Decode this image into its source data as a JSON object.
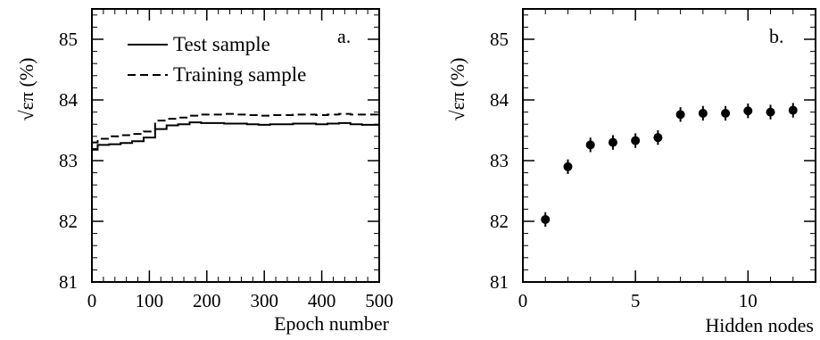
{
  "chart_data": [
    {
      "type": "line",
      "panel_label": "a.",
      "xlabel": "Epoch number",
      "ylabel": "√επ  (%)",
      "xlim": [
        0,
        500
      ],
      "ylim": [
        81,
        85.5
      ],
      "xticks": [
        0,
        100,
        200,
        300,
        400,
        500
      ],
      "yticks": [
        81,
        82,
        83,
        84,
        85
      ],
      "grid": false,
      "legend_position": "top-left",
      "series": [
        {
          "name": "Test sample",
          "style": "solid",
          "step": true,
          "x": [
            0,
            10,
            30,
            50,
            70,
            90,
            110,
            130,
            150,
            170,
            190,
            210,
            230,
            250,
            270,
            290,
            310,
            330,
            350,
            370,
            390,
            410,
            430,
            450,
            470,
            490,
            500
          ],
          "y": [
            83.18,
            83.26,
            83.27,
            83.29,
            83.32,
            83.38,
            83.52,
            83.58,
            83.6,
            83.63,
            83.62,
            83.62,
            83.61,
            83.61,
            83.6,
            83.59,
            83.6,
            83.6,
            83.61,
            83.61,
            83.6,
            83.61,
            83.62,
            83.6,
            83.59,
            83.59,
            83.59
          ]
        },
        {
          "name": "Training sample",
          "style": "dashed",
          "step": true,
          "x": [
            0,
            10,
            30,
            50,
            70,
            90,
            110,
            130,
            150,
            170,
            190,
            210,
            230,
            250,
            270,
            290,
            310,
            330,
            350,
            370,
            390,
            410,
            430,
            450,
            470,
            490,
            500
          ],
          "y": [
            83.3,
            83.36,
            83.4,
            83.42,
            83.44,
            83.48,
            83.66,
            83.69,
            83.71,
            83.74,
            83.76,
            83.76,
            83.77,
            83.76,
            83.75,
            83.74,
            83.75,
            83.75,
            83.76,
            83.76,
            83.75,
            83.76,
            83.77,
            83.76,
            83.76,
            83.76,
            83.76
          ]
        }
      ]
    },
    {
      "type": "scatter",
      "panel_label": "b.",
      "xlabel": "Hidden nodes",
      "ylabel": "√επ  (%)",
      "xlim": [
        0,
        13
      ],
      "ylim": [
        81,
        85.5
      ],
      "xticks": [
        0,
        5,
        10
      ],
      "yticks": [
        81,
        82,
        83,
        84,
        85
      ],
      "grid": false,
      "series": [
        {
          "x": [
            1,
            2,
            3,
            4,
            5,
            6,
            7,
            8,
            9,
            10,
            11,
            12
          ],
          "y": [
            82.03,
            82.9,
            83.26,
            83.3,
            83.33,
            83.38,
            83.76,
            83.78,
            83.78,
            83.82,
            83.8,
            83.83
          ],
          "yerr": [
            0.12,
            0.12,
            0.12,
            0.12,
            0.12,
            0.12,
            0.12,
            0.12,
            0.12,
            0.12,
            0.12,
            0.12
          ]
        }
      ]
    }
  ]
}
